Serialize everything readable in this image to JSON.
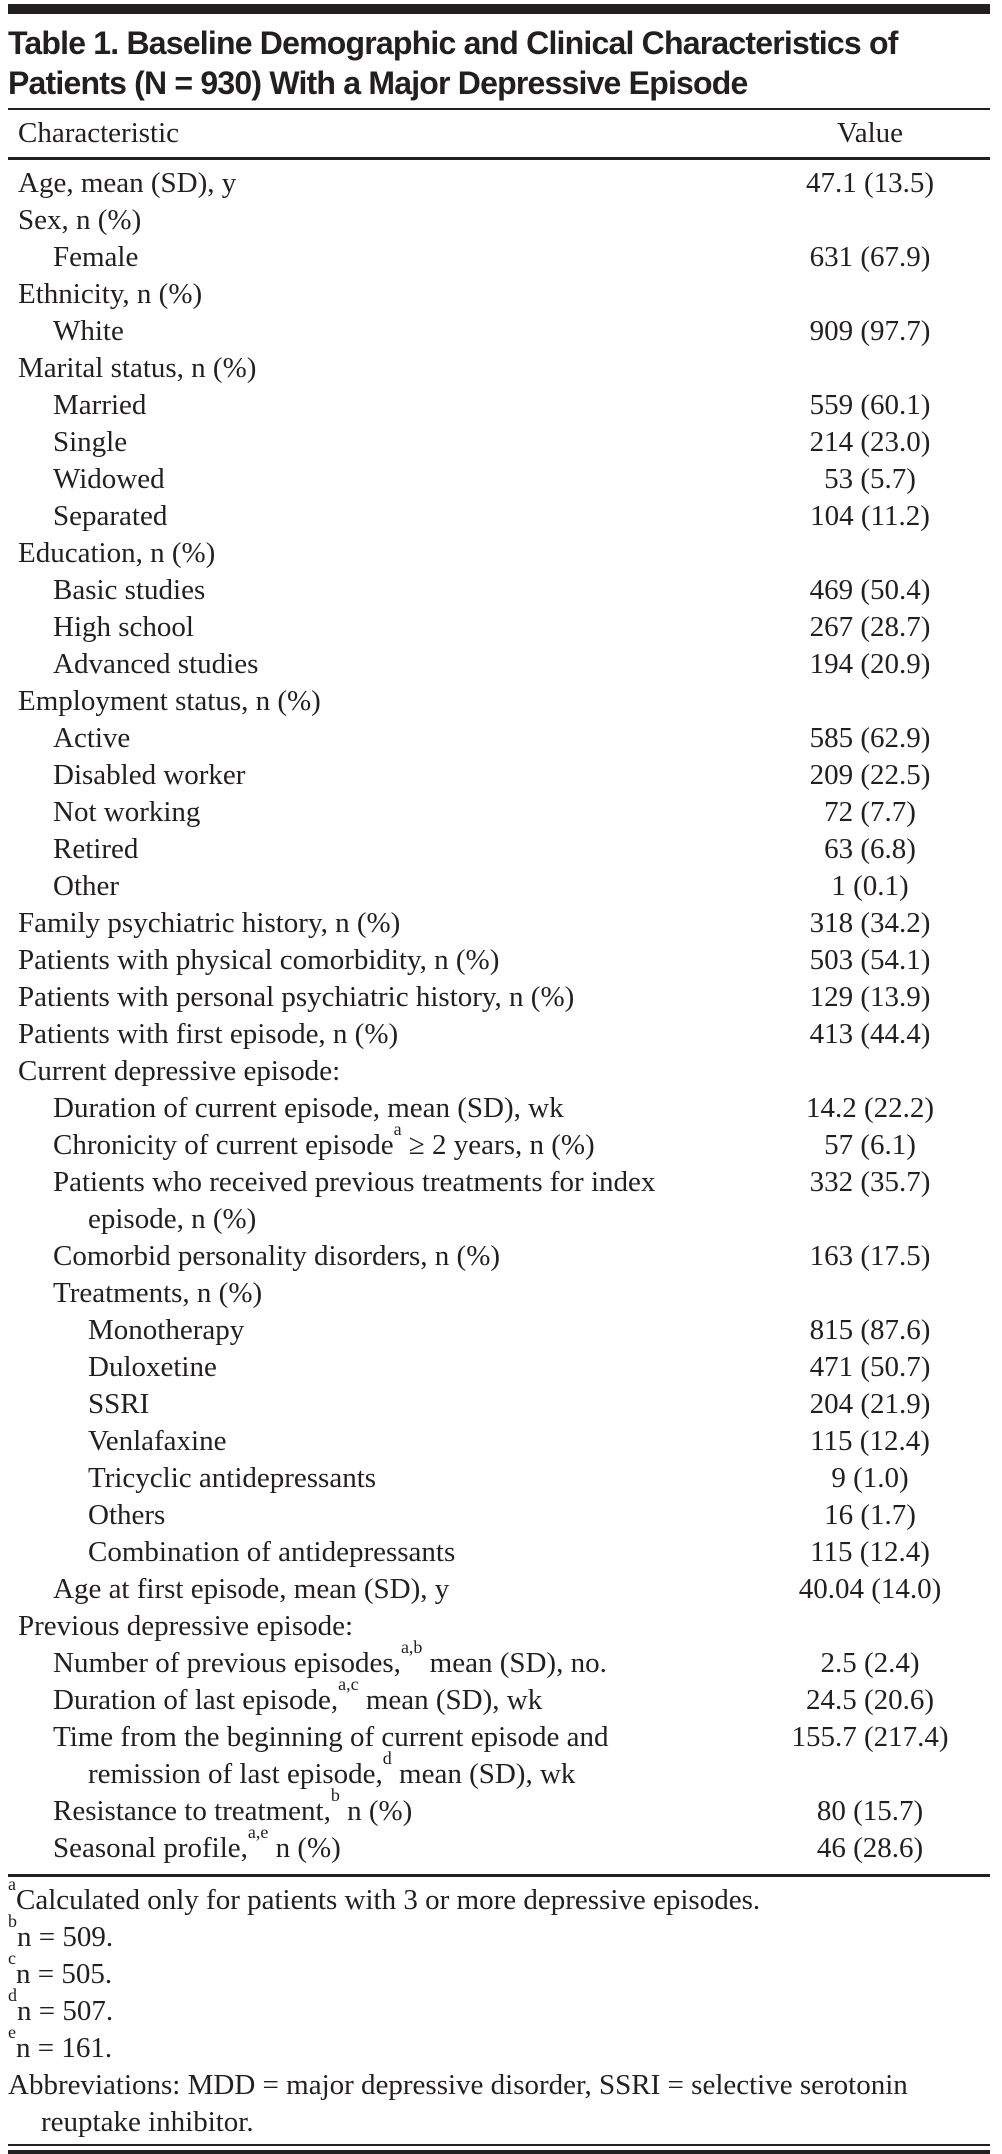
{
  "title": {
    "line1": "Table 1. Baseline Demographic and Clinical Characteristics of",
    "line2": "Patients (N = 930) With a Major Depressive Episode"
  },
  "header": {
    "characteristic": "Characteristic",
    "value": "Value"
  },
  "rows": [
    {
      "indent": 0,
      "label": [
        {
          "t": "Age, mean (SD), y"
        }
      ],
      "value": "47.1 (13.5)"
    },
    {
      "indent": 0,
      "label": [
        {
          "t": "Sex, n (%)"
        }
      ],
      "value": ""
    },
    {
      "indent": 1,
      "label": [
        {
          "t": "Female"
        }
      ],
      "value": "631 (67.9)"
    },
    {
      "indent": 0,
      "label": [
        {
          "t": "Ethnicity, n (%)"
        }
      ],
      "value": ""
    },
    {
      "indent": 1,
      "label": [
        {
          "t": "White"
        }
      ],
      "value": "909 (97.7)"
    },
    {
      "indent": 0,
      "label": [
        {
          "t": "Marital status, n (%)"
        }
      ],
      "value": ""
    },
    {
      "indent": 1,
      "label": [
        {
          "t": "Married"
        }
      ],
      "value": "559 (60.1)"
    },
    {
      "indent": 1,
      "label": [
        {
          "t": "Single"
        }
      ],
      "value": "214 (23.0)"
    },
    {
      "indent": 1,
      "label": [
        {
          "t": "Widowed"
        }
      ],
      "value": "53 (5.7)"
    },
    {
      "indent": 1,
      "label": [
        {
          "t": "Separated"
        }
      ],
      "value": "104 (11.2)"
    },
    {
      "indent": 0,
      "label": [
        {
          "t": "Education, n (%)"
        }
      ],
      "value": ""
    },
    {
      "indent": 1,
      "label": [
        {
          "t": "Basic studies"
        }
      ],
      "value": "469 (50.4)"
    },
    {
      "indent": 1,
      "label": [
        {
          "t": "High school"
        }
      ],
      "value": "267 (28.7)"
    },
    {
      "indent": 1,
      "label": [
        {
          "t": "Advanced studies"
        }
      ],
      "value": "194 (20.9)"
    },
    {
      "indent": 0,
      "label": [
        {
          "t": "Employment status, n (%)"
        }
      ],
      "value": ""
    },
    {
      "indent": 1,
      "label": [
        {
          "t": "Active"
        }
      ],
      "value": "585 (62.9)"
    },
    {
      "indent": 1,
      "label": [
        {
          "t": "Disabled worker"
        }
      ],
      "value": "209 (22.5)"
    },
    {
      "indent": 1,
      "label": [
        {
          "t": "Not working"
        }
      ],
      "value": "72 (7.7)"
    },
    {
      "indent": 1,
      "label": [
        {
          "t": "Retired"
        }
      ],
      "value": "63 (6.8)"
    },
    {
      "indent": 1,
      "label": [
        {
          "t": "Other"
        }
      ],
      "value": "1 (0.1)"
    },
    {
      "indent": 0,
      "label": [
        {
          "t": "Family psychiatric history, n (%)"
        }
      ],
      "value": "318 (34.2)"
    },
    {
      "indent": 0,
      "label": [
        {
          "t": "Patients with physical comorbidity, n (%)"
        }
      ],
      "value": "503 (54.1)"
    },
    {
      "indent": 0,
      "label": [
        {
          "t": "Patients with personal psychiatric history, n (%)"
        }
      ],
      "value": "129 (13.9)"
    },
    {
      "indent": 0,
      "label": [
        {
          "t": "Patients with first episode, n (%)"
        }
      ],
      "value": "413 (44.4)"
    },
    {
      "indent": 0,
      "label": [
        {
          "t": "Current depressive episode:"
        }
      ],
      "value": ""
    },
    {
      "indent": 1,
      "label": [
        {
          "t": "Duration of current episode, mean (SD), wk"
        }
      ],
      "value": "14.2 (22.2)"
    },
    {
      "indent": 1,
      "label": [
        {
          "t": "Chronicity of current episode"
        },
        {
          "t": "a",
          "sup": true
        },
        {
          "t": " ≥ 2 years, n (%)"
        }
      ],
      "value": "57 (6.1)"
    },
    {
      "indent": 1,
      "label": [
        {
          "t": "Patients who received previous treatments for index"
        }
      ],
      "label2": [
        {
          "t": "episode, n (%)"
        }
      ],
      "value": "332 (35.7)"
    },
    {
      "indent": 1,
      "label": [
        {
          "t": "Comorbid personality disorders, n (%)"
        }
      ],
      "value": "163 (17.5)"
    },
    {
      "indent": 1,
      "label": [
        {
          "t": "Treatments, n (%)"
        }
      ],
      "value": ""
    },
    {
      "indent": 2,
      "label": [
        {
          "t": "Monotherapy"
        }
      ],
      "value": "815 (87.6)"
    },
    {
      "indent": 2,
      "label": [
        {
          "t": "Duloxetine"
        }
      ],
      "value": "471 (50.7)"
    },
    {
      "indent": 2,
      "label": [
        {
          "t": "SSRI"
        }
      ],
      "value": "204 (21.9)"
    },
    {
      "indent": 2,
      "label": [
        {
          "t": "Venlafaxine"
        }
      ],
      "value": "115 (12.4)"
    },
    {
      "indent": 2,
      "label": [
        {
          "t": "Tricyclic antidepressants"
        }
      ],
      "value": "9 (1.0)"
    },
    {
      "indent": 2,
      "label": [
        {
          "t": "Others"
        }
      ],
      "value": "16 (1.7)"
    },
    {
      "indent": 2,
      "label": [
        {
          "t": "Combination of antidepressants"
        }
      ],
      "value": "115 (12.4)"
    },
    {
      "indent": 1,
      "label": [
        {
          "t": "Age at first episode, mean (SD), y"
        }
      ],
      "value": "40.04 (14.0)"
    },
    {
      "indent": 0,
      "label": [
        {
          "t": "Previous depressive episode:"
        }
      ],
      "value": ""
    },
    {
      "indent": 1,
      "label": [
        {
          "t": "Number of previous episodes,"
        },
        {
          "t": "a,b",
          "sup": true
        },
        {
          "t": " mean (SD), no."
        }
      ],
      "value": "2.5 (2.4)"
    },
    {
      "indent": 1,
      "label": [
        {
          "t": "Duration of last episode,"
        },
        {
          "t": "a,c",
          "sup": true
        },
        {
          "t": " mean (SD), wk"
        }
      ],
      "value": "24.5 (20.6)"
    },
    {
      "indent": 1,
      "label": [
        {
          "t": "Time from the beginning of current episode and"
        }
      ],
      "label2": [
        {
          "t": "remission of last episode,"
        },
        {
          "t": "d",
          "sup": true
        },
        {
          "t": " mean (SD), wk"
        }
      ],
      "value": "155.7 (217.4)"
    },
    {
      "indent": 1,
      "label": [
        {
          "t": "Resistance to treatment,"
        },
        {
          "t": "b",
          "sup": true
        },
        {
          "t": " n (%)"
        }
      ],
      "value": "80 (15.7)"
    },
    {
      "indent": 1,
      "label": [
        {
          "t": "Seasonal profile,"
        },
        {
          "t": "a,e",
          "sup": true
        },
        {
          "t": " n (%)"
        }
      ],
      "value": "46 (28.6)"
    }
  ],
  "footnotes": [
    {
      "sup": "a",
      "text": "Calculated only for patients with 3 or more depressive episodes."
    },
    {
      "sup": "b",
      "text": "n = 509."
    },
    {
      "sup": "c",
      "text": "n = 505."
    },
    {
      "sup": "d",
      "text": "n = 507."
    },
    {
      "sup": "e",
      "text": "n = 161."
    },
    {
      "sup": "",
      "text": "Abbreviations: MDD = major depressive disorder, SSRI = selective serotonin reuptake inhibitor."
    }
  ],
  "colors": {
    "text": "#231f20",
    "rule": "#231f20",
    "bar": "#231f20",
    "background": "#ffffff"
  }
}
